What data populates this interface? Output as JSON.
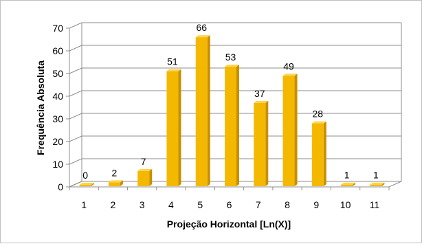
{
  "chart_data": {
    "type": "bar",
    "categories": [
      "1",
      "2",
      "3",
      "4",
      "5",
      "6",
      "7",
      "8",
      "9",
      "10",
      "11"
    ],
    "values": [
      0,
      2,
      7,
      51,
      66,
      53,
      37,
      49,
      28,
      1,
      1
    ],
    "xlabel": "Projeção Horizontal [Ln(X)]",
    "ylabel": "Frequência Absoluta",
    "ylim": [
      0,
      70
    ],
    "yticks": [
      0,
      10,
      20,
      30,
      40,
      50,
      60,
      70
    ],
    "grid": true,
    "legend": "none",
    "colors": {
      "bar_front": "#F5B800",
      "bar_side": "#C78F00",
      "bar_top": "#FFD44D",
      "gridline": "#8c8c8c"
    }
  }
}
